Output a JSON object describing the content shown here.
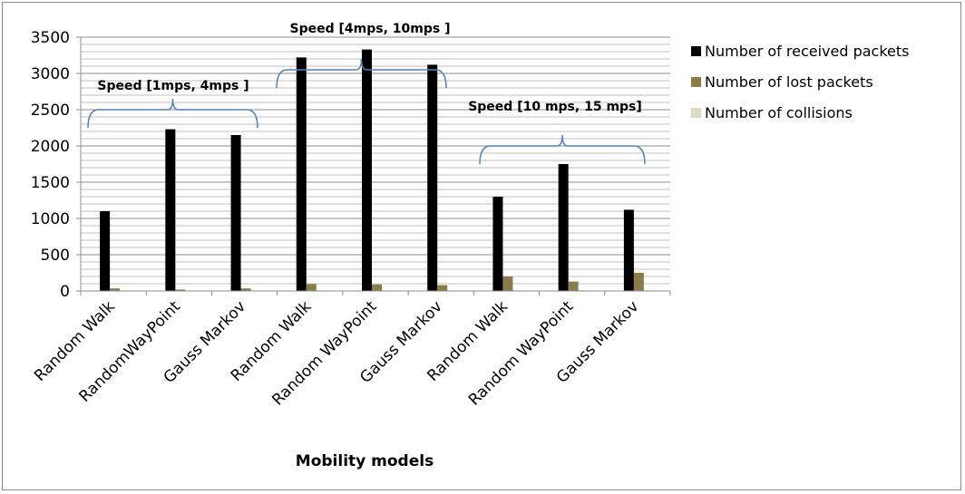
{
  "chart_data": {
    "type": "bar",
    "xlabel": "Mobility models",
    "ylabel": "",
    "ylim": [
      0,
      3500
    ],
    "yticks": [
      0,
      500,
      1000,
      1500,
      2000,
      2500,
      3000,
      3500
    ],
    "grid": true,
    "legend_position": "right",
    "categories": [
      "Random Walk",
      "RandomWayPoint",
      "Gauss Markov",
      "Random Walk",
      "Random WayPoint",
      "Gauss Markov",
      "Random Walk",
      "Random WayPoint",
      "Gauss Markov"
    ],
    "series": [
      {
        "name": "Number of received packets",
        "color": "#000000",
        "values": [
          1100,
          2230,
          2150,
          3220,
          3330,
          3120,
          1300,
          1750,
          1120
        ]
      },
      {
        "name": "Number of lost packets",
        "color": "#8b7d48",
        "values": [
          35,
          20,
          35,
          95,
          90,
          80,
          200,
          130,
          250
        ]
      },
      {
        "name": "Number of collisions",
        "color": "#ddd9c3",
        "values": [
          5,
          5,
          5,
          8,
          8,
          8,
          10,
          10,
          10
        ]
      }
    ],
    "annotations": [
      {
        "label": "Speed [1mps, 4mps ]",
        "from_category": 0,
        "to_category": 2,
        "bracket_value": 2500
      },
      {
        "label": "Speed [4mps, 10mps ]",
        "from_category": 3,
        "to_category": 5,
        "bracket_value": 3050
      },
      {
        "label": "Speed [10 mps, 15 mps]",
        "from_category": 6,
        "to_category": 8,
        "bracket_value": 2000
      }
    ]
  }
}
